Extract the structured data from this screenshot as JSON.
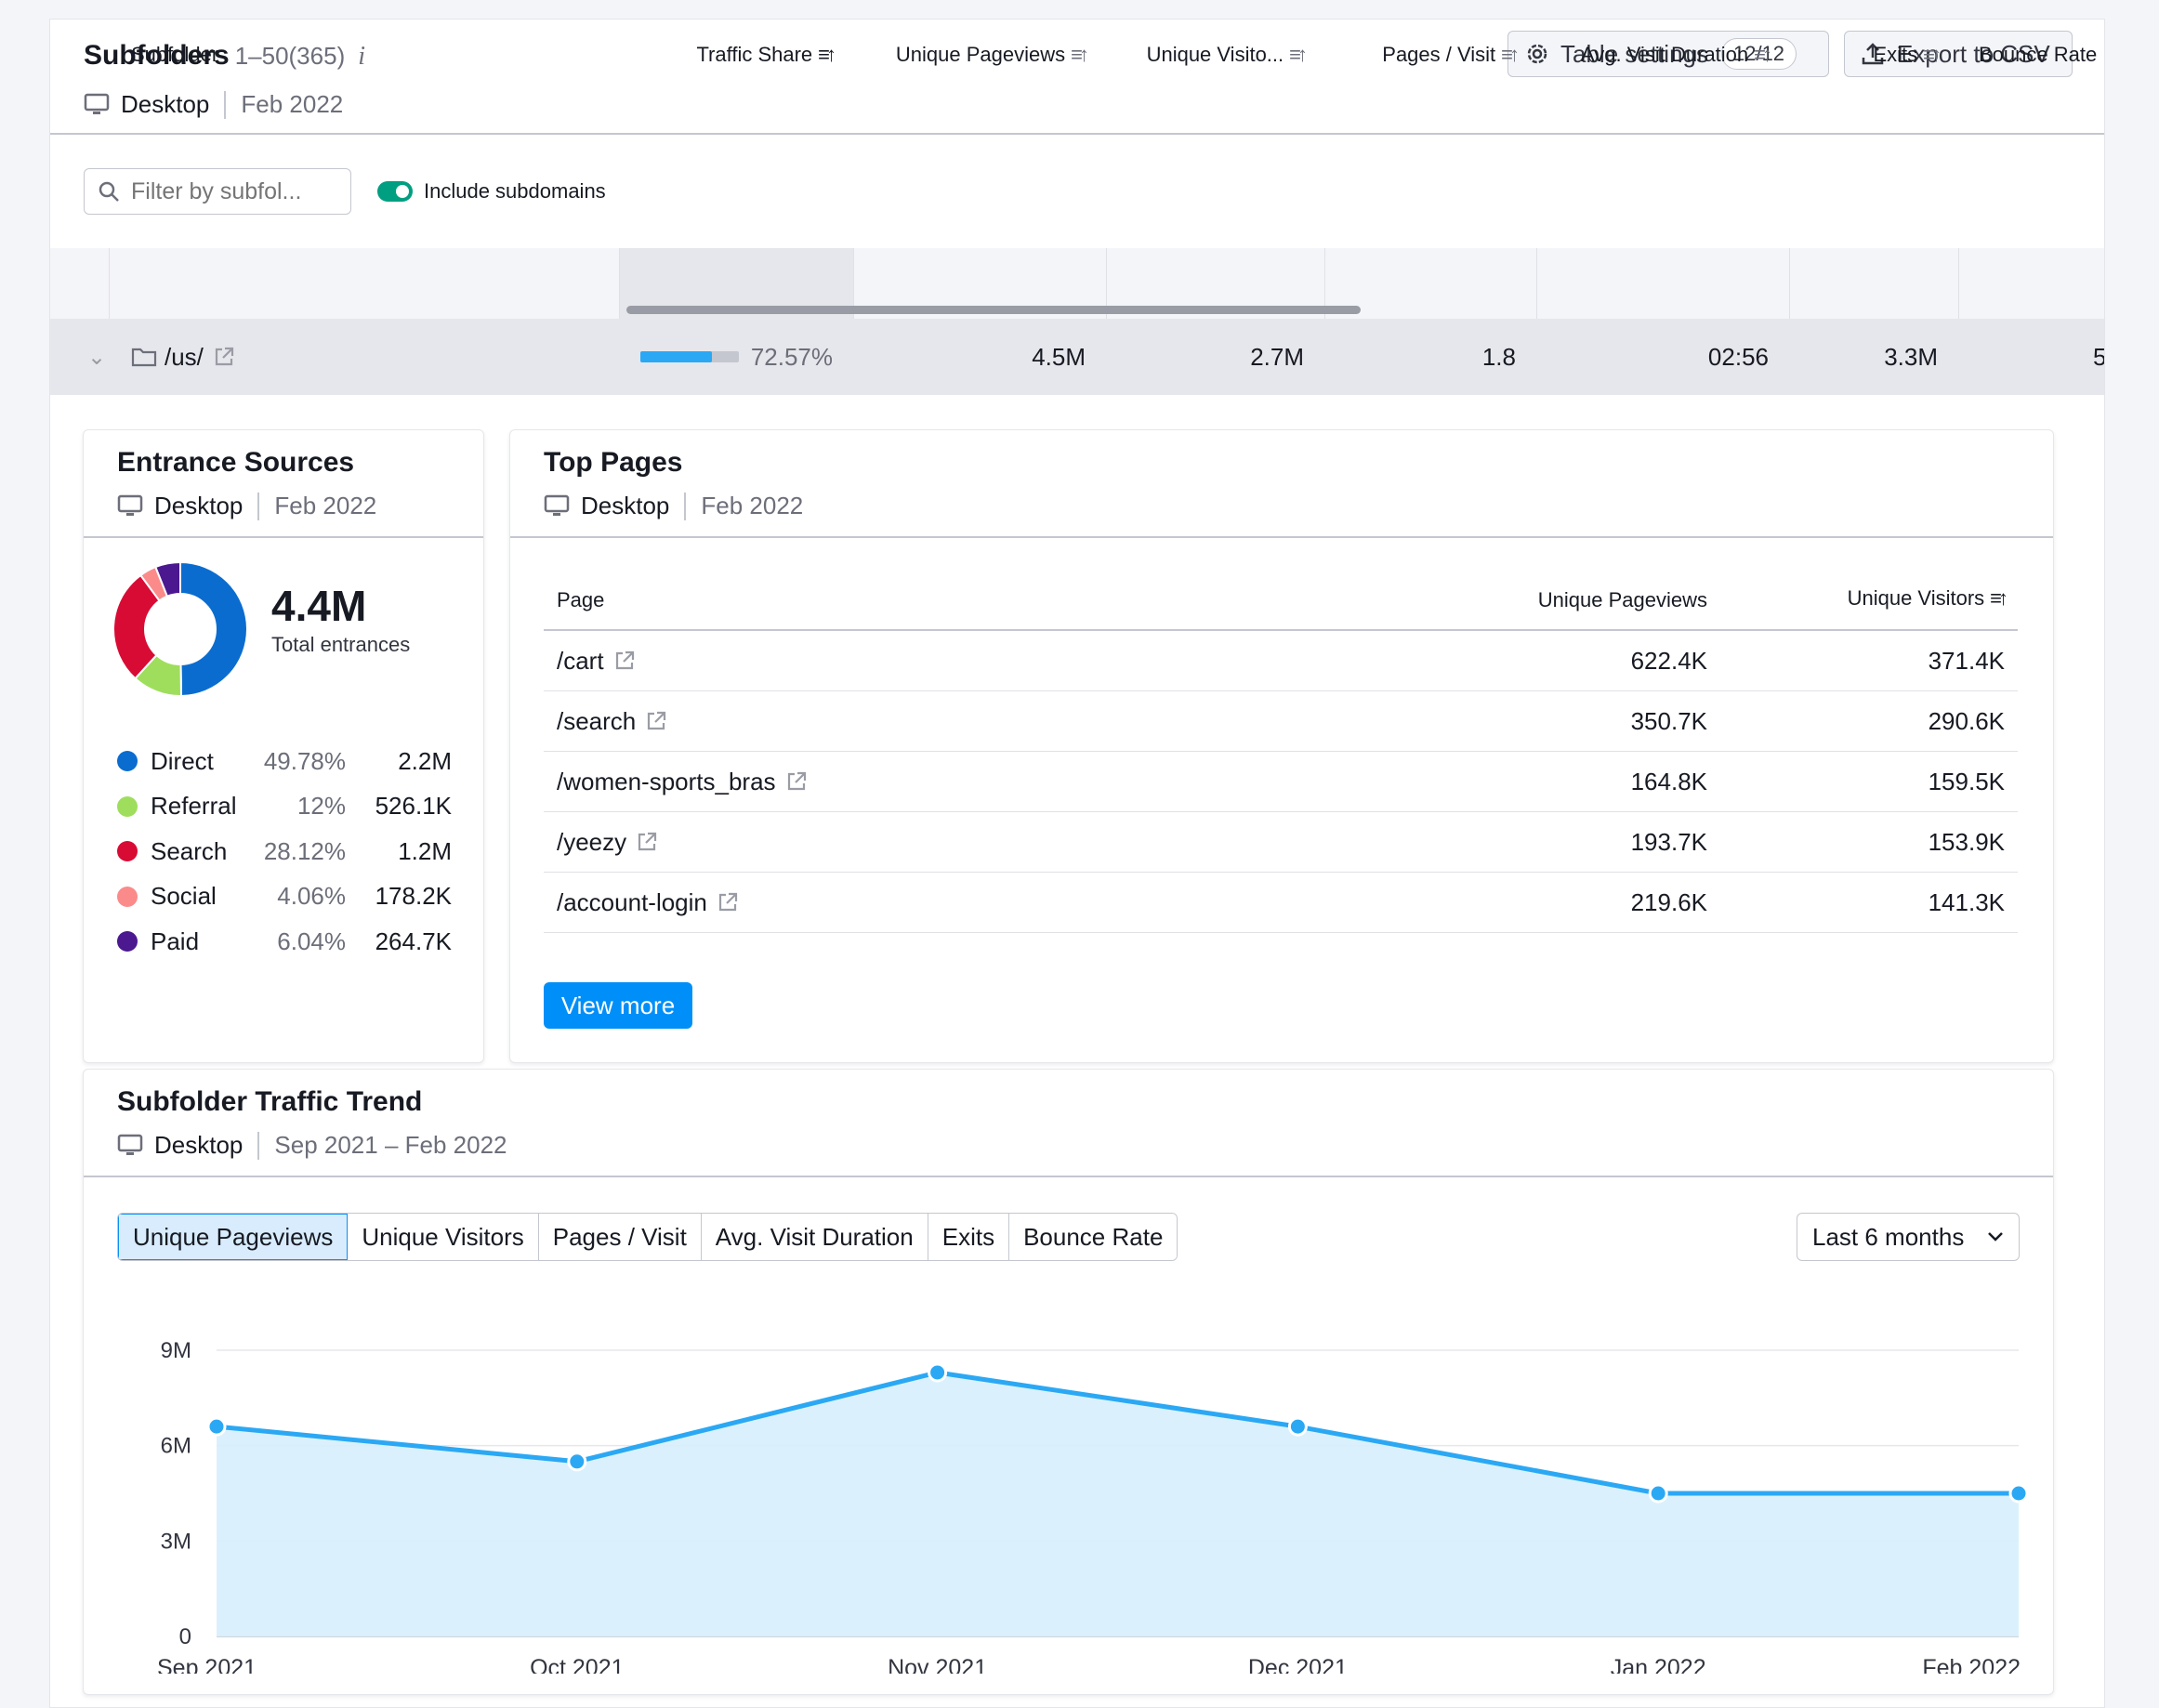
{
  "header": {
    "title": "Subfolders",
    "range": "1–50(365)",
    "info_icon": "info-icon",
    "device": "Desktop",
    "date": "Feb 2022",
    "table_settings_label": "Table settings",
    "table_settings_count": "12/12",
    "export_label": "Export to CSV"
  },
  "filter": {
    "placeholder": "Filter by subfol...",
    "include_subdomains_label": "Include subdomains",
    "include_subdomains_on": true
  },
  "table": {
    "columns": [
      "Subfolder",
      "Traffic Share",
      "Unique Pageviews",
      "Unique Visito...",
      "Pages / Visit",
      "Avg. Visit Duration",
      "Exits",
      "Bounce Rate"
    ],
    "row": {
      "subfolder": "/us/",
      "traffic_share": "72.57%",
      "traffic_share_fraction": 0.7257,
      "unique_pageviews": "4.5M",
      "unique_visitors": "2.7M",
      "pages_per_visit": "1.8",
      "avg_visit_duration": "02:56",
      "exits": "3.3M",
      "bounce_rate": "5"
    }
  },
  "entrance_sources": {
    "title": "Entrance Sources",
    "device": "Desktop",
    "date": "Feb 2022",
    "total": "4.4M",
    "total_label": "Total entrances",
    "items": [
      {
        "name": "Direct",
        "pct": "49.78%",
        "value": "2.2M",
        "color": "#0b6ccf",
        "share": 49.78
      },
      {
        "name": "Referral",
        "pct": "12%",
        "value": "526.1K",
        "color": "#9fde5c",
        "share": 12
      },
      {
        "name": "Search",
        "pct": "28.12%",
        "value": "1.2M",
        "color": "#d80b34",
        "share": 28.12
      },
      {
        "name": "Social",
        "pct": "4.06%",
        "value": "178.2K",
        "color": "#fb8b8b",
        "share": 4.06
      },
      {
        "name": "Paid",
        "pct": "6.04%",
        "value": "264.7K",
        "color": "#4b1890",
        "share": 6.04
      }
    ]
  },
  "top_pages": {
    "title": "Top Pages",
    "device": "Desktop",
    "date": "Feb 2022",
    "columns": [
      "Page",
      "Unique Pageviews",
      "Unique Visitors"
    ],
    "rows": [
      {
        "page": "/cart",
        "pageviews": "622.4K",
        "visitors": "371.4K"
      },
      {
        "page": "/search",
        "pageviews": "350.7K",
        "visitors": "290.6K"
      },
      {
        "page": "/women-sports_bras",
        "pageviews": "164.8K",
        "visitors": "159.5K"
      },
      {
        "page": "/yeezy",
        "pageviews": "193.7K",
        "visitors": "153.9K"
      },
      {
        "page": "/account-login",
        "pageviews": "219.6K",
        "visitors": "141.3K"
      }
    ],
    "view_more_label": "View more"
  },
  "trend": {
    "title": "Subfolder Traffic Trend",
    "device": "Desktop",
    "date_range": "Sep 2021 – Feb 2022",
    "tabs": [
      "Unique Pageviews",
      "Unique Visitors",
      "Pages / Visit",
      "Avg. Visit Duration",
      "Exits",
      "Bounce Rate"
    ],
    "active_tab": 0,
    "period_label": "Last 6 months"
  },
  "chart_data": {
    "type": "area",
    "categories": [
      "Sep 2021",
      "Oct 2021",
      "Nov 2021",
      "Dec 2021",
      "Jan 2022",
      "Feb 2022"
    ],
    "series": [
      {
        "values": [
          6.6,
          5.5,
          8.3,
          6.6,
          4.5,
          4.5
        ]
      }
    ],
    "unit": "M",
    "y_ticks": [
      "0",
      "3M",
      "6M",
      "9M"
    ],
    "ylim": [
      0,
      9
    ],
    "grid": true,
    "line_color": "#2ba8f4",
    "fill_color": "#d6effd"
  }
}
